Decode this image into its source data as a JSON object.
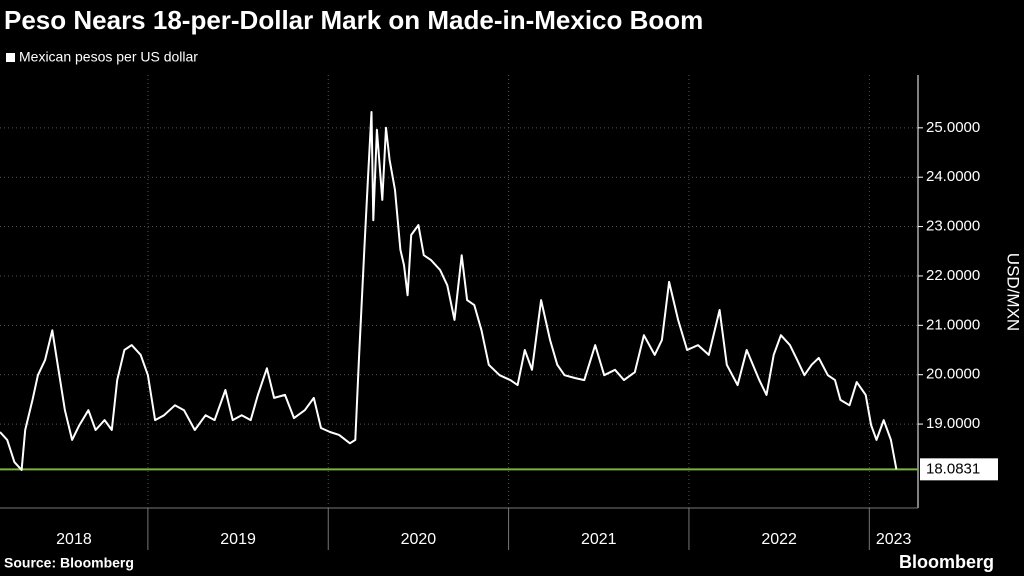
{
  "chart_data": {
    "type": "line",
    "title": "Peso Nears 18-per-Dollar Mark on Made-in-Mexico Boom",
    "x": [
      2018.18,
      2018.22,
      2018.26,
      2018.3,
      2018.32,
      2018.36,
      2018.39,
      2018.43,
      2018.47,
      2018.5,
      2018.54,
      2018.58,
      2018.62,
      2018.67,
      2018.71,
      2018.76,
      2018.8,
      2018.83,
      2018.87,
      2018.91,
      2018.96,
      2019.0,
      2019.04,
      2019.09,
      2019.15,
      2019.2,
      2019.26,
      2019.32,
      2019.37,
      2019.43,
      2019.47,
      2019.52,
      2019.57,
      2019.61,
      2019.66,
      2019.7,
      2019.76,
      2019.81,
      2019.87,
      2019.92,
      2019.96,
      2020.01,
      2020.06,
      2020.12,
      2020.15,
      2020.17,
      2020.2,
      2020.22,
      2020.24,
      2020.25,
      2020.27,
      2020.3,
      2020.32,
      2020.34,
      2020.37,
      2020.4,
      2020.42,
      2020.44,
      2020.46,
      2020.5,
      2020.53,
      2020.57,
      2020.62,
      2020.66,
      2020.7,
      2020.74,
      2020.77,
      2020.81,
      2020.85,
      2020.89,
      2020.95,
      2021.01,
      2021.05,
      2021.09,
      2021.13,
      2021.18,
      2021.23,
      2021.27,
      2021.31,
      2021.37,
      2021.42,
      2021.48,
      2021.53,
      2021.59,
      2021.64,
      2021.7,
      2021.75,
      2021.81,
      2021.85,
      2021.89,
      2021.94,
      2021.99,
      2022.05,
      2022.11,
      2022.17,
      2022.21,
      2022.27,
      2022.32,
      2022.39,
      2022.43,
      2022.47,
      2022.51,
      2022.56,
      2022.6,
      2022.64,
      2022.68,
      2022.72,
      2022.77,
      2022.81,
      2022.84,
      2022.89,
      2022.93,
      2022.98,
      2023.01,
      2023.04,
      2023.08,
      2023.12,
      2023.15
    ],
    "series": [
      {
        "name": "Mexican pesos per US dollar",
        "color": "#ffffff",
        "values": [
          18.84,
          18.68,
          18.23,
          18.07,
          18.88,
          19.49,
          19.99,
          20.3,
          20.9,
          20.2,
          19.28,
          18.68,
          18.98,
          19.28,
          18.88,
          19.08,
          18.88,
          19.89,
          20.5,
          20.6,
          20.4,
          19.99,
          19.08,
          19.18,
          19.38,
          19.28,
          18.88,
          19.18,
          19.08,
          19.69,
          19.08,
          19.18,
          19.08,
          19.59,
          20.13,
          19.53,
          19.59,
          19.12,
          19.28,
          19.53,
          18.92,
          18.84,
          18.78,
          18.61,
          18.68,
          20.3,
          22.53,
          23.95,
          25.32,
          23.13,
          24.96,
          23.54,
          25.0,
          24.35,
          23.74,
          22.53,
          22.22,
          21.61,
          22.83,
          23.03,
          22.42,
          22.32,
          22.12,
          21.81,
          21.11,
          22.42,
          21.51,
          21.41,
          20.9,
          20.2,
          19.99,
          19.89,
          19.79,
          20.5,
          20.1,
          21.51,
          20.7,
          20.2,
          19.99,
          19.93,
          19.89,
          20.6,
          19.99,
          20.1,
          19.89,
          20.05,
          20.8,
          20.4,
          20.7,
          21.88,
          21.11,
          20.5,
          20.6,
          20.4,
          21.31,
          20.2,
          19.79,
          20.5,
          19.89,
          19.59,
          20.4,
          20.8,
          20.6,
          20.3,
          19.99,
          20.2,
          20.34,
          19.99,
          19.89,
          19.49,
          19.38,
          19.85,
          19.59,
          18.98,
          18.68,
          19.08,
          18.68,
          18.0831
        ]
      }
    ],
    "xlim": [
      2018.18,
      2023.27
    ],
    "xticks": [
      2018,
      2019,
      2020,
      2021,
      2022,
      2023
    ],
    "ylabel": "USD/MXN",
    "ylim": [
      17.3,
      26.07
    ],
    "yticks": [
      {
        "value": 19,
        "label": "19.0000"
      },
      {
        "value": 20,
        "label": "20.0000"
      },
      {
        "value": 21,
        "label": "21.0000"
      },
      {
        "value": 22,
        "label": "22.0000"
      },
      {
        "value": 23,
        "label": "23.0000"
      },
      {
        "value": 24,
        "label": "24.0000"
      },
      {
        "value": 25,
        "label": "25.0000"
      }
    ],
    "grid": true,
    "reference_value": 18.0831,
    "reference_color": "#7cb342",
    "source": "Source: Bloomberg",
    "brand": "Bloomberg"
  }
}
